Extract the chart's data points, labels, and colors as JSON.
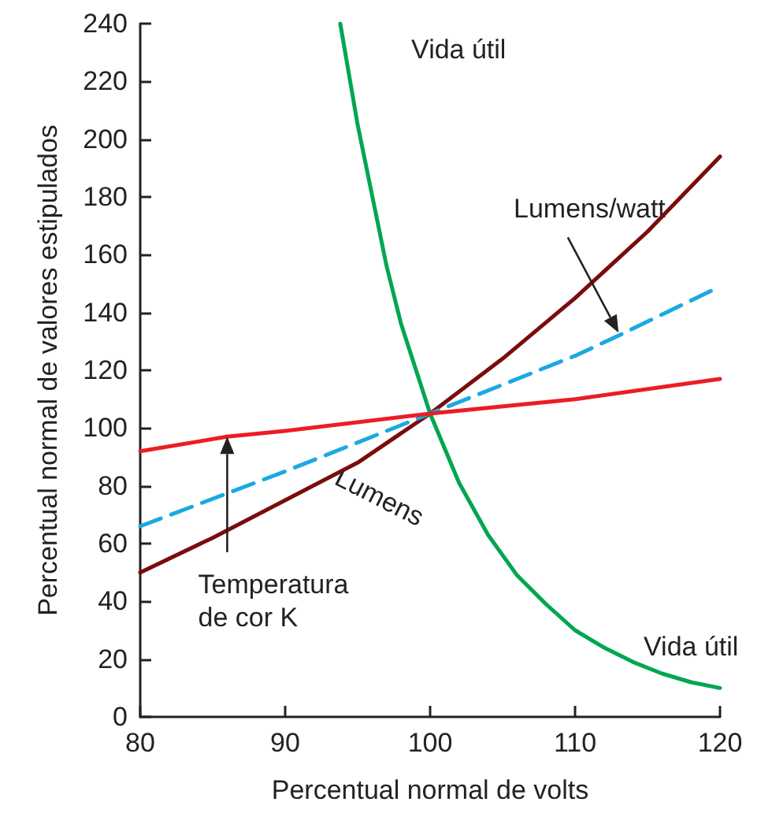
{
  "chart_data": {
    "type": "line",
    "xlabel": "Percentual normal de volts",
    "ylabel": "Percentual normal de valores estipulados",
    "xlim": [
      80,
      120
    ],
    "xticks": [
      80,
      90,
      100,
      110,
      120
    ],
    "ylim": [
      0,
      240
    ],
    "yticks": [
      0,
      20,
      40,
      60,
      80,
      100,
      120,
      140,
      160,
      180,
      200,
      220,
      240
    ],
    "grid": false,
    "legend": false,
    "marker": "none",
    "series": [
      {
        "name": "Vida útil",
        "color": "#00a651",
        "line_style": "solid",
        "x": [
          93.8,
          95,
          97,
          98,
          100,
          102,
          104,
          106,
          108,
          110,
          112,
          114,
          116,
          118,
          120
        ],
        "values": [
          240,
          205,
          156,
          136,
          105,
          81,
          63,
          49,
          39,
          30,
          24,
          19,
          15,
          12,
          10
        ]
      },
      {
        "name": "Lumens",
        "color": "#7b0c0c",
        "line_style": "solid",
        "x": [
          80,
          85,
          90,
          95,
          100,
          105,
          110,
          115,
          120
        ],
        "values": [
          50,
          62,
          75,
          88,
          105,
          124,
          145,
          168,
          194
        ]
      },
      {
        "name": "Lumens/watt",
        "color": "#1ba9e1",
        "line_style": "dashed",
        "x": [
          80,
          90,
          100,
          110,
          113,
          120
        ],
        "values": [
          66,
          85,
          105,
          125,
          132,
          149
        ]
      },
      {
        "name": "Temperatura de cor K",
        "color": "#ed1c24",
        "line_style": "solid",
        "x": [
          80,
          86,
          90,
          100,
          110,
          120
        ],
        "values": [
          92,
          97,
          99,
          105,
          110,
          117
        ]
      }
    ],
    "annotations": [
      {
        "text": "Vida útil",
        "x": 118,
        "y": 12
      }
    ]
  }
}
